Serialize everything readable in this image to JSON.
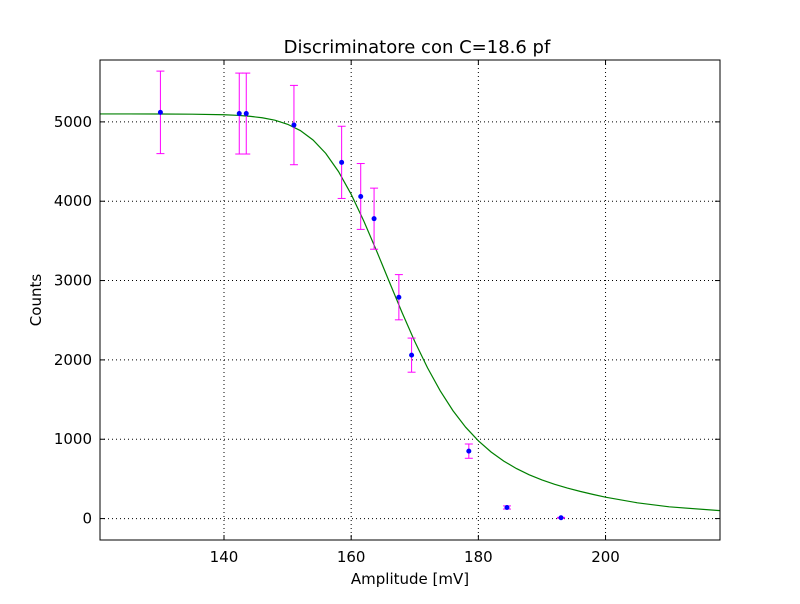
{
  "chart_data": {
    "type": "scatter",
    "title": "Discriminatore con C=18.6 pf",
    "xlabel": "Amplitude [mV]",
    "ylabel": "Counts",
    "xlim": [
      120.5,
      218
    ],
    "ylim": [
      -270,
      5780
    ],
    "xticks": [
      140,
      160,
      180,
      200
    ],
    "yticks": [
      0,
      1000,
      2000,
      3000,
      4000,
      5000
    ],
    "grid": true,
    "grid_style": "dotted",
    "legend": "none",
    "series": [
      {
        "kind": "data-with-errorbars",
        "marker_color": "#0000ff",
        "errorbar_color": "#ff00ff",
        "points": [
          {
            "x": 130.0,
            "y": 5120,
            "err": 520
          },
          {
            "x": 142.4,
            "y": 5105,
            "err": 510
          },
          {
            "x": 143.5,
            "y": 5105,
            "err": 510
          },
          {
            "x": 151.0,
            "y": 4960,
            "err": 500
          },
          {
            "x": 158.5,
            "y": 4490,
            "err": 455
          },
          {
            "x": 161.5,
            "y": 4060,
            "err": 415
          },
          {
            "x": 163.6,
            "y": 3780,
            "err": 385
          },
          {
            "x": 167.5,
            "y": 2790,
            "err": 285
          },
          {
            "x": 169.5,
            "y": 2060,
            "err": 215
          },
          {
            "x": 178.5,
            "y": 850,
            "err": 90
          },
          {
            "x": 184.5,
            "y": 140,
            "err": 20
          },
          {
            "x": 193.0,
            "y": 10,
            "err": 5
          }
        ]
      },
      {
        "kind": "fit-curve",
        "line_color": "#008000",
        "x": [
          120.5,
          125,
          130,
          135,
          140,
          142,
          144,
          146,
          148,
          150,
          152,
          154,
          156,
          158,
          160,
          162,
          164,
          166,
          168,
          170,
          172,
          174,
          176,
          178,
          180,
          182,
          184,
          186,
          188,
          190,
          192,
          194,
          196,
          198,
          200,
          205,
          210,
          218
        ],
        "y": [
          5100,
          5100,
          5099,
          5097,
          5090,
          5083,
          5071,
          5052,
          5021,
          4970,
          4891,
          4772,
          4603,
          4375,
          4087,
          3748,
          3373,
          2983,
          2597,
          2232,
          1901,
          1610,
          1361,
          1152,
          980,
          839,
          724,
          630,
          552,
          487,
          432,
          385,
          343,
          305,
          270,
          199,
          148,
          100
        ]
      }
    ]
  }
}
